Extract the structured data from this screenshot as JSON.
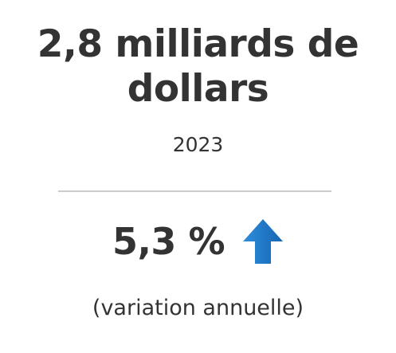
{
  "headline": {
    "line1": "2,8 milliards de",
    "line2": "dollars"
  },
  "year": "2023",
  "change": {
    "value": "5,3 %",
    "direction_icon": "arrow-up-icon",
    "arrow_color": "#1f78c8"
  },
  "caption": "(variation annuelle)"
}
